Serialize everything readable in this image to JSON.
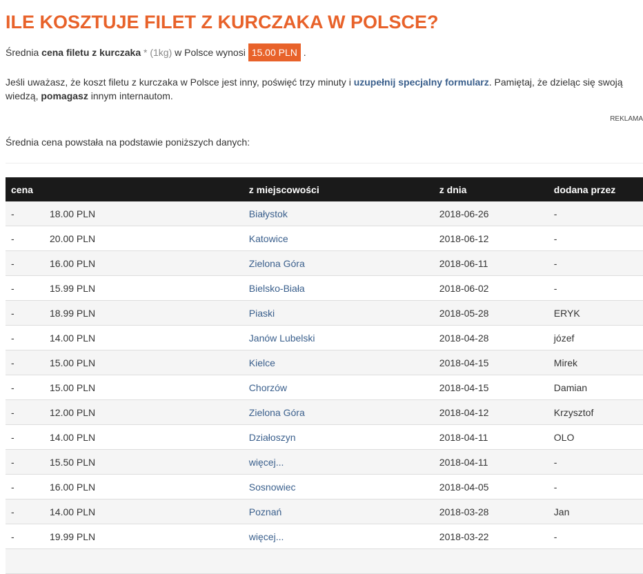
{
  "title": "ILE KOSZTUJE FILET Z KURCZAKA W POLSCE?",
  "intro": {
    "pre": "Średnia ",
    "bold": "cena filetu z kurczaka",
    "star": " * (1kg)",
    "mid": " w Polsce wynosi ",
    "price": "15.00 PLN",
    "end": " ."
  },
  "info": {
    "t1": "Jeśli uważasz, że koszt filetu z kurczaka w Polsce jest inny, poświęć trzy minuty i ",
    "link": "uzupełnij specjalny formularz",
    "t2": ". Pamiętaj, że dzieląc się swoją wiedzą, ",
    "bold": "pomagasz",
    "t3": " innym internautom."
  },
  "ad_label": "REKLAMA",
  "basis": "Średnia cena powstała na podstawie poniższych danych:",
  "table": {
    "headers": [
      "cena",
      "z miejscowości",
      "z dnia",
      "dodana przez"
    ],
    "rows": [
      [
        "-",
        "18.00 PLN",
        "Białystok",
        "2018-06-26",
        "-"
      ],
      [
        "-",
        "20.00 PLN",
        "Katowice",
        "2018-06-12",
        "-"
      ],
      [
        "-",
        "16.00 PLN",
        "Zielona Góra",
        "2018-06-11",
        "-"
      ],
      [
        "-",
        "15.99 PLN",
        "Bielsko-Biała",
        "2018-06-02",
        "-"
      ],
      [
        "-",
        "18.99 PLN",
        "Piaski",
        "2018-05-28",
        "ERYK"
      ],
      [
        "-",
        "14.00 PLN",
        "Janów Lubelski",
        "2018-04-28",
        "józef"
      ],
      [
        "-",
        "15.00 PLN",
        "Kielce",
        "2018-04-15",
        "Mirek"
      ],
      [
        "-",
        "15.00 PLN",
        "Chorzów",
        "2018-04-15",
        "Damian"
      ],
      [
        "-",
        "12.00 PLN",
        "Zielona Góra",
        "2018-04-12",
        "Krzysztof"
      ],
      [
        "-",
        "14.00 PLN",
        "Działoszyn",
        "2018-04-11",
        "OLO"
      ],
      [
        "-",
        "15.50 PLN",
        "więcej...",
        "2018-04-11",
        "-"
      ],
      [
        "-",
        "16.00 PLN",
        "Sosnowiec",
        "2018-04-05",
        "-"
      ],
      [
        "-",
        "14.00 PLN",
        "Poznań",
        "2018-03-28",
        "Jan"
      ],
      [
        "-",
        "19.99 PLN",
        "więcej...",
        "2018-03-22",
        "-"
      ],
      [
        "",
        "",
        "",
        "",
        ""
      ]
    ]
  },
  "colors": {
    "accent": "#e8622a",
    "link": "#3a5f8c",
    "header_bg": "#1a1a1a"
  }
}
